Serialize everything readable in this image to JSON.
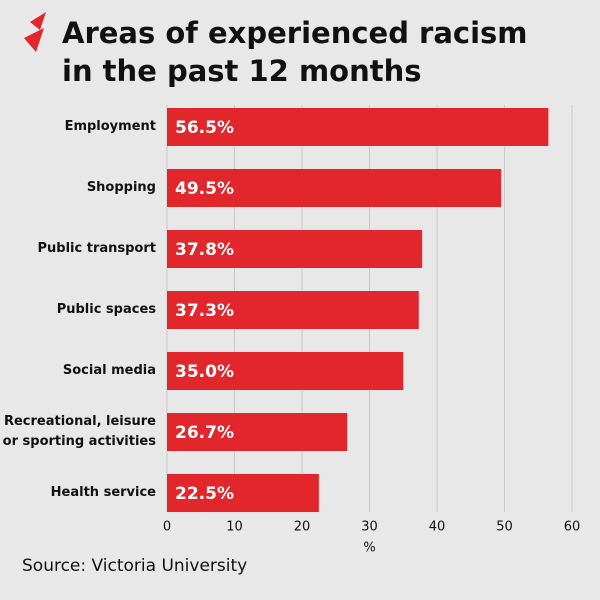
{
  "chart_data": {
    "type": "bar",
    "orientation": "horizontal",
    "title": "Areas of experienced racism\nin the past 12 months",
    "categories": [
      "Employment",
      "Shopping",
      "Public transport",
      "Public spaces",
      "Social media",
      "Recreational, leisure\nor sporting activities",
      "Health service"
    ],
    "values": [
      56.5,
      49.5,
      37.8,
      37.3,
      35.0,
      26.7,
      22.5
    ],
    "value_labels": [
      "56.5%",
      "49.5%",
      "37.8%",
      "37.3%",
      "35.0%",
      "26.7%",
      "22.5%"
    ],
    "color": "#e1262c",
    "xlim": [
      0,
      60
    ],
    "xticks": [
      0,
      10,
      20,
      30,
      40,
      50,
      60
    ],
    "xlabel": "%",
    "grid": true,
    "source": "Source: Victoria University"
  }
}
